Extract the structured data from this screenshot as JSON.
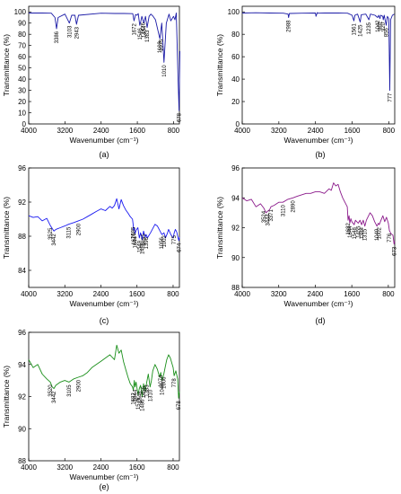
{
  "chart_data": [
    {
      "type": "line",
      "panel_label": "(a)",
      "xlabel": "Wavenumber (cm⁻¹)",
      "ylabel": "Transmittance (%)",
      "xlim": [
        4000,
        670
      ],
      "ylim": [
        0,
        105
      ],
      "xticks": [
        4000,
        3200,
        2400,
        1600,
        800
      ],
      "yticks": [
        0,
        10,
        20,
        30,
        40,
        50,
        60,
        70,
        80,
        90,
        100
      ],
      "series": [
        {
          "color": "#1a1aa6",
          "x": [
            4000,
            3700,
            3500,
            3420,
            3386,
            3350,
            3200,
            3103,
            3050,
            2980,
            2943,
            2900,
            2400,
            2100,
            1900,
            1700,
            1672,
            1640,
            1608,
            1580,
            1546,
            1520,
            1500,
            1476,
            1454,
            1420,
            1383,
            1340,
            1300,
            1250,
            1200,
            1103,
            1060,
            1010,
            960,
            900,
            860,
            800,
            770,
            740,
            700,
            678,
            660
          ],
          "y": [
            99,
            99,
            98.8,
            95,
            85,
            95,
            98,
            90,
            97,
            97,
            89,
            97,
            98.8,
            98.6,
            98.6,
            98.4,
            92,
            97.6,
            97,
            98.5,
            88,
            92,
            96,
            93,
            90,
            96,
            86,
            96,
            98,
            96,
            93,
            76,
            90,
            55,
            90,
            98,
            92,
            96,
            93,
            99,
            40,
            12,
            65
          ]
        }
      ],
      "annotations": [
        {
          "text": "3386",
          "x": 3386,
          "y": 85
        },
        {
          "text": "3103",
          "x": 3103,
          "y": 90
        },
        {
          "text": "2943",
          "x": 2943,
          "y": 89
        },
        {
          "text": "1672",
          "x": 1672,
          "y": 92
        },
        {
          "text": "1546",
          "x": 1546,
          "y": 88
        },
        {
          "text": "1476",
          "x": 1476,
          "y": 93
        },
        {
          "text": "1454",
          "x": 1454,
          "y": 90
        },
        {
          "text": "1383",
          "x": 1383,
          "y": 86
        },
        {
          "text": "1103",
          "x": 1103,
          "y": 76
        },
        {
          "text": "1075",
          "x": 1075,
          "y": 78
        },
        {
          "text": "1010",
          "x": 1010,
          "y": 55
        },
        {
          "text": "678",
          "x": 678,
          "y": 12
        }
      ]
    },
    {
      "type": "line",
      "panel_label": "(b)",
      "xlabel": "Wavenumber (cm⁻¹)",
      "ylabel": "Transmittance (%)",
      "xlim": [
        4000,
        670
      ],
      "ylim": [
        0,
        105
      ],
      "xticks": [
        4000,
        3200,
        2400,
        1600,
        800
      ],
      "yticks": [
        0,
        20,
        40,
        60,
        80,
        100
      ],
      "series": [
        {
          "color": "#1a1aa6",
          "x": [
            4000,
            3700,
            3400,
            3100,
            3000,
            2988,
            2970,
            2700,
            2400,
            2390,
            2360,
            2340,
            2200,
            1900,
            1700,
            1600,
            1561,
            1540,
            1480,
            1425,
            1400,
            1300,
            1235,
            1200,
            1100,
            1042,
            1020,
            991,
            980,
            930,
            920,
            900,
            856,
            830,
            800,
            777,
            760,
            720,
            680
          ],
          "y": [
            99,
            99.2,
            99,
            98.8,
            98,
            95,
            98.6,
            98.8,
            99,
            96,
            99.4,
            98.8,
            99,
            99,
            98.8,
            97,
            92,
            97,
            98,
            91,
            97.5,
            98,
            93,
            98,
            97,
            95,
            97,
            94,
            97,
            96,
            93,
            97,
            88,
            96,
            94,
            30,
            93,
            97,
            98
          ]
        }
      ],
      "annotations": [
        {
          "text": "2988",
          "x": 2988,
          "y": 95
        },
        {
          "text": "1561",
          "x": 1561,
          "y": 92
        },
        {
          "text": "1425",
          "x": 1425,
          "y": 91
        },
        {
          "text": "1235",
          "x": 1235,
          "y": 93
        },
        {
          "text": "1042",
          "x": 1042,
          "y": 95
        },
        {
          "text": "991",
          "x": 991,
          "y": 94
        },
        {
          "text": "920",
          "x": 920,
          "y": 93
        },
        {
          "text": "856",
          "x": 856,
          "y": 88
        },
        {
          "text": "777",
          "x": 777,
          "y": 30
        }
      ]
    },
    {
      "type": "line",
      "panel_label": "(c)",
      "xlabel": "Wavenumber (cm⁻¹)",
      "ylabel": "Transmittance (%)",
      "xlim": [
        4000,
        660
      ],
      "ylim": [
        82,
        96
      ],
      "xticks": [
        4000,
        3200,
        2400,
        1600,
        800
      ],
      "yticks": [
        84,
        88,
        92,
        96
      ],
      "series": [
        {
          "color": "#1a1af0",
          "x": [
            4000,
            3900,
            3800,
            3700,
            3600,
            3525,
            3480,
            3442,
            3400,
            3300,
            3200,
            3115,
            3000,
            2900,
            2800,
            2700,
            2600,
            2500,
            2400,
            2300,
            2200,
            2150,
            2100,
            2050,
            2000,
            1950,
            1900,
            1850,
            1800,
            1750,
            1700,
            1685,
            1676,
            1660,
            1644,
            1620,
            1580,
            1549,
            1520,
            1486,
            1455,
            1420,
            1396,
            1370,
            1300,
            1250,
            1200,
            1150,
            1100,
            1050,
            1002,
            970,
            930,
            900,
            850,
            800,
            775,
            750,
            720,
            690,
            674,
            660
          ],
          "y": [
            90.4,
            90.2,
            90.3,
            89.8,
            90.1,
            89.3,
            88.9,
            88.6,
            88.8,
            89.0,
            89.2,
            89.4,
            89.6,
            89.8,
            90.0,
            90.3,
            90.6,
            90.9,
            91.2,
            91.0,
            91.5,
            91.3,
            91.6,
            92.4,
            91.2,
            92.3,
            91.6,
            91.1,
            90.7,
            90.3,
            90.0,
            89.4,
            88.7,
            89.0,
            88.3,
            88.7,
            89.0,
            87.8,
            88.4,
            87.6,
            88.6,
            87.9,
            88.2,
            87.8,
            88.4,
            88.9,
            89.4,
            89.2,
            88.7,
            88.2,
            88.4,
            87.8,
            88.3,
            88.8,
            88.2,
            87.8,
            88.4,
            88.8,
            88.5,
            87.8,
            87.5,
            87.9
          ]
        }
      ],
      "annotations": [
        {
          "text": "3525",
          "x": 3525,
          "y": 89.3
        },
        {
          "text": "3442",
          "x": 3442,
          "y": 88.6
        },
        {
          "text": "3115",
          "x": 3115,
          "y": 89.4
        },
        {
          "text": "2900",
          "x": 2900,
          "y": 89.8
        },
        {
          "text": "1685",
          "x": 1685,
          "y": 89.4
        },
        {
          "text": "1676",
          "x": 1676,
          "y": 88.7
        },
        {
          "text": "1644",
          "x": 1644,
          "y": 88.3
        },
        {
          "text": "1549",
          "x": 1549,
          "y": 87.8
        },
        {
          "text": "1486",
          "x": 1486,
          "y": 87.6
        },
        {
          "text": "1455",
          "x": 1455,
          "y": 88.6
        },
        {
          "text": "1396",
          "x": 1396,
          "y": 88.2
        },
        {
          "text": "1056",
          "x": 1056,
          "y": 88.2
        },
        {
          "text": "1002",
          "x": 1002,
          "y": 88.4
        },
        {
          "text": "775",
          "x": 775,
          "y": 88.4
        },
        {
          "text": "674",
          "x": 674,
          "y": 87.5
        }
      ]
    },
    {
      "type": "line",
      "panel_label": "(d)",
      "xlabel": "Wavenumber (cm⁻¹)",
      "ylabel": "Transmittance (%)",
      "xlim": [
        4000,
        660
      ],
      "ylim": [
        88,
        96
      ],
      "xticks": [
        4000,
        3200,
        2400,
        1600,
        800
      ],
      "yticks": [
        88,
        90,
        92,
        94,
        96
      ],
      "series": [
        {
          "color": "#8b1a8b",
          "x": [
            4000,
            3900,
            3800,
            3700,
            3600,
            3524,
            3480,
            3444,
            3400,
            3371,
            3300,
            3200,
            3110,
            3000,
            2890,
            2800,
            2700,
            2600,
            2500,
            2400,
            2300,
            2200,
            2100,
            2050,
            2000,
            1950,
            1900,
            1850,
            1800,
            1750,
            1700,
            1682,
            1660,
            1644,
            1620,
            1600,
            1548,
            1520,
            1460,
            1420,
            1384,
            1350,
            1315,
            1280,
            1250,
            1200,
            1150,
            1100,
            1049,
            1020,
            1000,
            960,
            920,
            880,
            840,
            800,
            776,
            740,
            700,
            673,
            660
          ],
          "y": [
            94.0,
            93.8,
            93.9,
            93.4,
            93.6,
            93.3,
            93.0,
            93.1,
            93.2,
            93.4,
            93.5,
            93.7,
            93.7,
            93.9,
            94.0,
            94.1,
            94.2,
            94.3,
            94.3,
            94.4,
            94.4,
            94.3,
            94.6,
            94.5,
            95.0,
            94.8,
            94.9,
            94.4,
            94.0,
            93.7,
            93.4,
            92.5,
            92.8,
            92.3,
            92.6,
            92.4,
            92.2,
            92.5,
            92.3,
            92.5,
            92.2,
            92.5,
            92.1,
            92.5,
            92.7,
            93.0,
            92.8,
            92.4,
            92.1,
            92.3,
            92.2,
            92.5,
            92.8,
            92.4,
            92.7,
            92.3,
            91.8,
            91.6,
            91.5,
            90.9,
            91.1
          ]
        }
      ],
      "annotations": [
        {
          "text": "3524",
          "x": 3524,
          "y": 93.3
        },
        {
          "text": "3444",
          "x": 3444,
          "y": 93.1
        },
        {
          "text": "3371",
          "x": 3371,
          "y": 93.4
        },
        {
          "text": "3110",
          "x": 3110,
          "y": 93.7
        },
        {
          "text": "2890",
          "x": 2890,
          "y": 94.0
        },
        {
          "text": "1682",
          "x": 1682,
          "y": 92.5
        },
        {
          "text": "1644",
          "x": 1644,
          "y": 92.3
        },
        {
          "text": "1548",
          "x": 1548,
          "y": 92.2
        },
        {
          "text": "1384",
          "x": 1384,
          "y": 92.2
        },
        {
          "text": "1455",
          "x": 1455,
          "y": 92.3
        },
        {
          "text": "1315",
          "x": 1315,
          "y": 92.1
        },
        {
          "text": "1049",
          "x": 1049,
          "y": 92.1
        },
        {
          "text": "1002",
          "x": 1002,
          "y": 92.2
        },
        {
          "text": "776",
          "x": 776,
          "y": 91.8
        },
        {
          "text": "673",
          "x": 673,
          "y": 90.9
        }
      ]
    },
    {
      "type": "line",
      "panel_label": "(e)",
      "xlabel": "Wavenumber (cm⁻¹)",
      "ylabel": "Transmittance (%)",
      "xlim": [
        4000,
        660
      ],
      "ylim": [
        88,
        96
      ],
      "xticks": [
        4000,
        3200,
        2400,
        1600,
        800
      ],
      "yticks": [
        88,
        90,
        92,
        94,
        96
      ],
      "series": [
        {
          "color": "#1a8f1a",
          "x": [
            4000,
            3900,
            3800,
            3700,
            3600,
            3520,
            3480,
            3442,
            3400,
            3300,
            3200,
            3105,
            3000,
            2900,
            2800,
            2700,
            2600,
            2500,
            2400,
            2300,
            2200,
            2100,
            2050,
            2000,
            1950,
            1900,
            1850,
            1800,
            1750,
            1700,
            1682,
            1660,
            1644,
            1620,
            1576,
            1548,
            1520,
            1486,
            1456,
            1420,
            1383,
            1350,
            1310,
            1280,
            1250,
            1200,
            1150,
            1100,
            1074,
            1048,
            1006,
            970,
            940,
            900,
            860,
            800,
            778,
            740,
            700,
            678,
            660
          ],
          "y": [
            94.3,
            93.8,
            94.0,
            93.4,
            93.1,
            92.9,
            92.6,
            92.5,
            92.7,
            92.9,
            93.0,
            92.9,
            93.1,
            93.2,
            93.3,
            93.5,
            93.8,
            94.0,
            94.2,
            94.4,
            94.6,
            94.3,
            95.2,
            94.7,
            94.9,
            94.2,
            93.7,
            93.2,
            92.8,
            92.6,
            92.4,
            93.0,
            92.6,
            92.9,
            92.1,
            92.5,
            92.7,
            92.0,
            92.8,
            92.3,
            92.9,
            93.4,
            92.6,
            93.0,
            93.6,
            94.0,
            93.7,
            93.2,
            93.5,
            93.0,
            93.4,
            93.9,
            94.3,
            94.6,
            94.4,
            93.8,
            93.3,
            93.6,
            93.1,
            91.9,
            92.3
          ]
        }
      ],
      "annotations": [
        {
          "text": "3520",
          "x": 3520,
          "y": 92.9
        },
        {
          "text": "3442",
          "x": 3442,
          "y": 92.5
        },
        {
          "text": "3105",
          "x": 3105,
          "y": 92.9
        },
        {
          "text": "2900",
          "x": 2900,
          "y": 93.2
        },
        {
          "text": "1682",
          "x": 1682,
          "y": 92.4
        },
        {
          "text": "1644",
          "x": 1644,
          "y": 92.6
        },
        {
          "text": "1576",
          "x": 1576,
          "y": 92.1
        },
        {
          "text": "1548",
          "x": 1548,
          "y": 92.5
        },
        {
          "text": "1486",
          "x": 1486,
          "y": 92.0
        },
        {
          "text": "1456",
          "x": 1456,
          "y": 92.8
        },
        {
          "text": "1383",
          "x": 1383,
          "y": 92.9
        },
        {
          "text": "1310",
          "x": 1310,
          "y": 92.6
        },
        {
          "text": "1074",
          "x": 1074,
          "y": 93.5
        },
        {
          "text": "1048",
          "x": 1048,
          "y": 93.0
        },
        {
          "text": "1006",
          "x": 1006,
          "y": 93.4
        },
        {
          "text": "778",
          "x": 778,
          "y": 93.3
        },
        {
          "text": "678",
          "x": 678,
          "y": 91.9
        }
      ]
    }
  ]
}
